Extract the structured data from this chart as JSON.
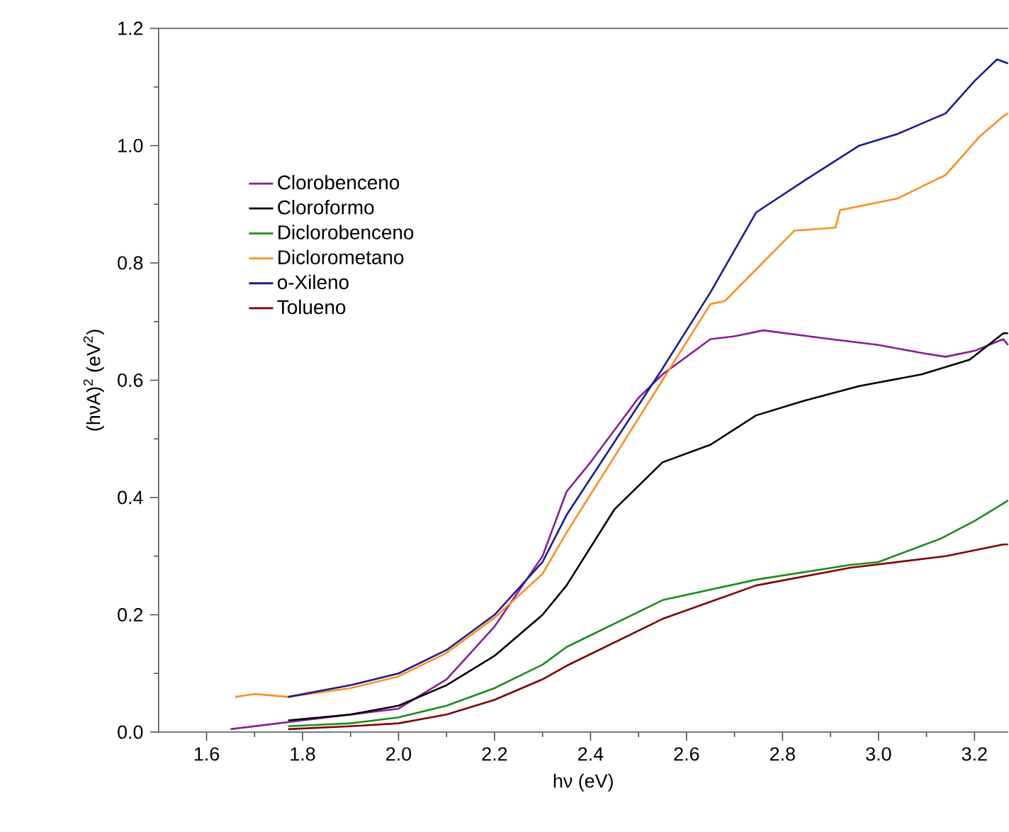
{
  "chart_data": {
    "type": "line",
    "xlabel": "hν (eV)",
    "ylabel": "(hνA)$^{2}$ (eV$^{2}$)",
    "xlim": [
      1.5,
      3.27
    ],
    "ylim": [
      0,
      1.2
    ],
    "xticks": [
      {
        "value": 1.6,
        "label": "1.6"
      },
      {
        "value": 1.8,
        "label": "1.8"
      },
      {
        "value": 2.0,
        "label": "2.0"
      },
      {
        "value": 2.2,
        "label": "2.2"
      },
      {
        "value": 2.4,
        "label": "2.4"
      },
      {
        "value": 2.6,
        "label": "2.6"
      },
      {
        "value": 2.8,
        "label": "2.8"
      },
      {
        "value": 3.0,
        "label": "3.0"
      },
      {
        "value": 3.2,
        "label": "3.2"
      }
    ],
    "yticks": [
      {
        "value": 0.0,
        "label": "0.0"
      },
      {
        "value": 0.2,
        "label": "0.2"
      },
      {
        "value": 0.4,
        "label": "0.4"
      },
      {
        "value": 0.6,
        "label": "0.6"
      },
      {
        "value": 0.8,
        "label": "0.8"
      },
      {
        "value": 1.0,
        "label": "1.0"
      },
      {
        "value": 1.2,
        "label": "1.2"
      }
    ],
    "legend": "left",
    "series": [
      {
        "name": "Clorobenceno",
        "color": "#8b1a9b",
        "x": [
          1.65,
          1.8,
          2.0,
          2.1,
          2.2,
          2.3,
          2.35,
          2.4,
          2.5,
          2.55,
          2.6,
          2.65,
          2.7,
          2.76,
          2.9,
          3.0,
          3.1,
          3.14,
          3.2,
          3.26,
          3.27
        ],
        "values": [
          0.005,
          0.02,
          0.04,
          0.09,
          0.18,
          0.3,
          0.41,
          0.46,
          0.57,
          0.61,
          0.64,
          0.67,
          0.675,
          0.685,
          0.67,
          0.66,
          0.645,
          0.64,
          0.65,
          0.67,
          0.66
        ]
      },
      {
        "name": "Cloroformo",
        "color": "#000000",
        "x": [
          1.77,
          1.9,
          2.0,
          2.1,
          2.2,
          2.3,
          2.35,
          2.45,
          2.55,
          2.65,
          2.745,
          2.845,
          2.96,
          3.09,
          3.19,
          3.26,
          3.27
        ],
        "values": [
          0.02,
          0.03,
          0.045,
          0.08,
          0.13,
          0.2,
          0.25,
          0.38,
          0.46,
          0.49,
          0.54,
          0.565,
          0.59,
          0.61,
          0.635,
          0.68,
          0.68
        ]
      },
      {
        "name": "Diclorobenceno",
        "color": "#1a8c1a",
        "x": [
          1.77,
          1.9,
          2.0,
          2.1,
          2.2,
          2.3,
          2.35,
          2.55,
          2.745,
          2.94,
          3.0,
          3.13,
          3.2,
          3.26,
          3.27
        ],
        "values": [
          0.01,
          0.015,
          0.025,
          0.045,
          0.075,
          0.115,
          0.145,
          0.225,
          0.26,
          0.285,
          0.29,
          0.33,
          0.36,
          0.39,
          0.395
        ]
      },
      {
        "name": "Diclorometano",
        "color": "#ff8c1a",
        "x": [
          1.66,
          1.7,
          1.77,
          1.9,
          2.0,
          2.1,
          2.2,
          2.3,
          2.35,
          2.55,
          2.65,
          2.68,
          2.825,
          2.91,
          2.92,
          3.04,
          3.14,
          3.21,
          3.26,
          3.27
        ],
        "values": [
          0.06,
          0.065,
          0.06,
          0.075,
          0.095,
          0.135,
          0.195,
          0.27,
          0.34,
          0.6,
          0.73,
          0.735,
          0.855,
          0.86,
          0.89,
          0.91,
          0.95,
          1.015,
          1.05,
          1.055
        ]
      },
      {
        "name": "o-Xileno",
        "color": "#1a1a99",
        "x": [
          1.77,
          1.9,
          2.0,
          2.1,
          2.2,
          2.3,
          2.35,
          2.55,
          2.65,
          2.745,
          2.845,
          2.96,
          3.04,
          3.14,
          3.2,
          3.247,
          3.27
        ],
        "values": [
          0.06,
          0.08,
          0.1,
          0.14,
          0.2,
          0.29,
          0.37,
          0.62,
          0.75,
          0.886,
          0.94,
          1.0,
          1.02,
          1.055,
          1.11,
          1.147,
          1.14
        ]
      },
      {
        "name": "Tolueno",
        "color": "#800000",
        "x": [
          1.77,
          1.9,
          2.0,
          2.1,
          2.2,
          2.3,
          2.35,
          2.55,
          2.745,
          2.94,
          3.14,
          3.26,
          3.27
        ],
        "values": [
          0.005,
          0.01,
          0.015,
          0.03,
          0.055,
          0.09,
          0.113,
          0.193,
          0.25,
          0.28,
          0.3,
          0.32,
          0.32
        ]
      }
    ]
  }
}
